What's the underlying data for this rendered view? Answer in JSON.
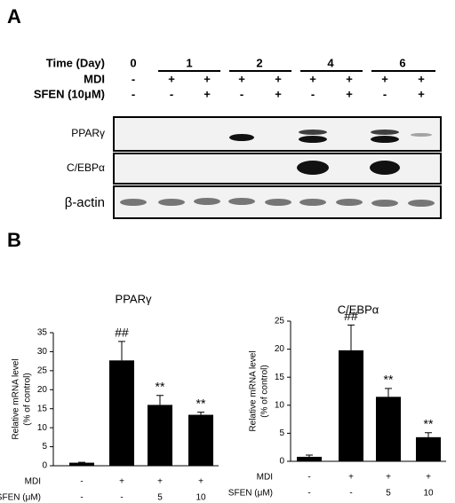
{
  "panel_a": {
    "label": "A",
    "rows": [
      {
        "label": "Time (Day)",
        "groups": [
          "0",
          "1",
          "2",
          "4",
          "6"
        ]
      },
      {
        "label": "MDI",
        "lanes": [
          "-",
          "+",
          "+",
          "+",
          "+",
          "+",
          "+",
          "+",
          "+"
        ]
      },
      {
        "label": "SFEN (10μM)",
        "lanes": [
          "-",
          "-",
          "+",
          "-",
          "+",
          "-",
          "+",
          "-",
          "+"
        ]
      }
    ],
    "blots": [
      "PPARγ",
      "C/EBPα",
      "β-actin"
    ]
  },
  "panel_b": {
    "label": "B"
  },
  "chart_data": [
    {
      "type": "bar",
      "title": "PPARγ",
      "ylabel": [
        "Relative mRNA level",
        "(% of control)"
      ],
      "values": [
        0.8,
        27.7,
        16,
        13.4
      ],
      "errors": [
        0.1,
        5,
        2.5,
        0.7
      ],
      "annotations": [
        null,
        "##",
        "**",
        "**"
      ],
      "color": "#000000",
      "ylim": [
        0,
        35
      ],
      "yticks": [
        0,
        5,
        10,
        15,
        20,
        25,
        30,
        35
      ],
      "rows": [
        {
          "label": "MDI",
          "values": [
            "-",
            "+",
            "+",
            "+"
          ]
        },
        {
          "label": "SFEN (μM)",
          "values": [
            "-",
            "-",
            "5",
            "10"
          ]
        }
      ]
    },
    {
      "type": "bar",
      "title": "C/EBPα",
      "ylabel": [
        "Relative mRNA level",
        "(% of control)"
      ],
      "values": [
        0.8,
        19.8,
        11.5,
        4.3
      ],
      "errors": [
        0.3,
        4.5,
        1.5,
        0.8
      ],
      "annotations": [
        null,
        "##",
        "**",
        "**"
      ],
      "color": "#000000",
      "ylim": [
        0,
        25
      ],
      "yticks": [
        0,
        5,
        10,
        15,
        20,
        25
      ],
      "rows": [
        {
          "label": "MDI",
          "values": [
            "-",
            "+",
            "+",
            "+"
          ]
        },
        {
          "label": "SFEN (μM)",
          "values": [
            "-",
            "-",
            "5",
            "10"
          ]
        }
      ]
    }
  ]
}
